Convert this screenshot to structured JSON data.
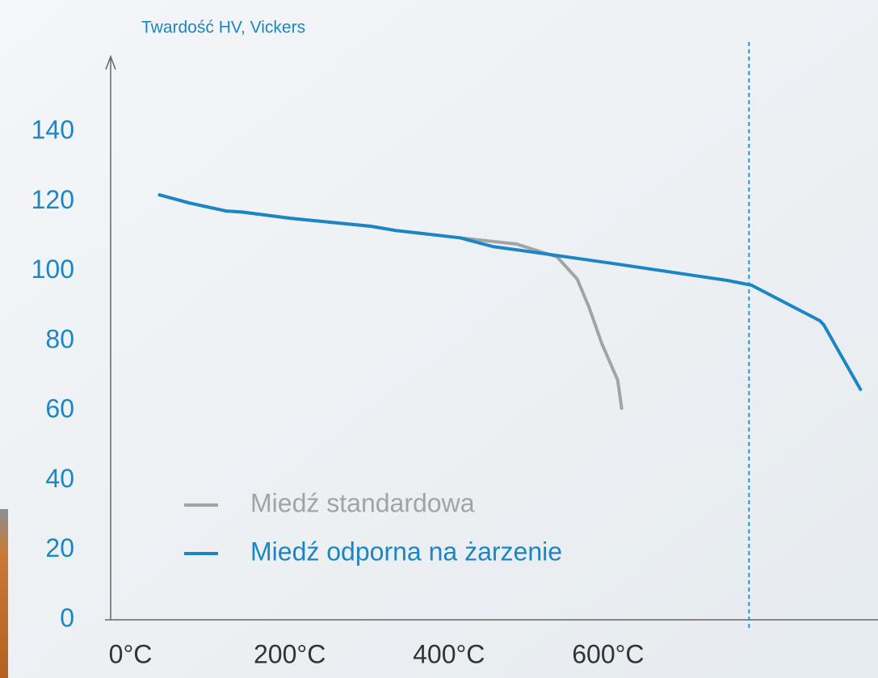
{
  "chart_data": {
    "type": "line",
    "y_axis_label": "Twardość HV, Vickers",
    "series": [
      {
        "name": "Miedź standardowa",
        "color": "#a3a3a3",
        "x": [
          36.5,
          74,
          120,
          140,
          201,
          302,
          333,
          414,
          485,
          536,
          561,
          576,
          592,
          612,
          617
        ],
        "values": [
          121.9,
          119.6,
          117.3,
          117,
          115.2,
          112.9,
          111.7,
          109.6,
          107.8,
          104.1,
          97.8,
          89.7,
          79.3,
          68.8,
          60.7
        ]
      },
      {
        "name": "Miedź odporna na żarzenie",
        "color": "#1b86c4",
        "x": [
          36.5,
          74,
          120,
          140,
          201,
          302,
          333,
          414,
          455,
          506,
          607,
          749,
          780,
          866,
          871,
          891,
          917
        ],
        "values": [
          121.9,
          119.6,
          117.3,
          117,
          115.2,
          112.9,
          111.7,
          109.6,
          107.1,
          105.5,
          102.2,
          97.4,
          96,
          85.8,
          84.6,
          76.5,
          66.1
        ]
      }
    ],
    "xlim": [
      -32,
      939
    ],
    "ylim": [
      0,
      161.6
    ],
    "xticks": [
      {
        "value": 0,
        "label": "0°C"
      },
      {
        "value": 200,
        "label": "200°C"
      },
      {
        "value": 400,
        "label": "400°C"
      },
      {
        "value": 600,
        "label": "600°C"
      }
    ],
    "yticks": [
      0,
      20,
      40,
      60,
      80,
      100,
      120,
      140
    ],
    "vline": 777,
    "legend": "lower-left"
  }
}
